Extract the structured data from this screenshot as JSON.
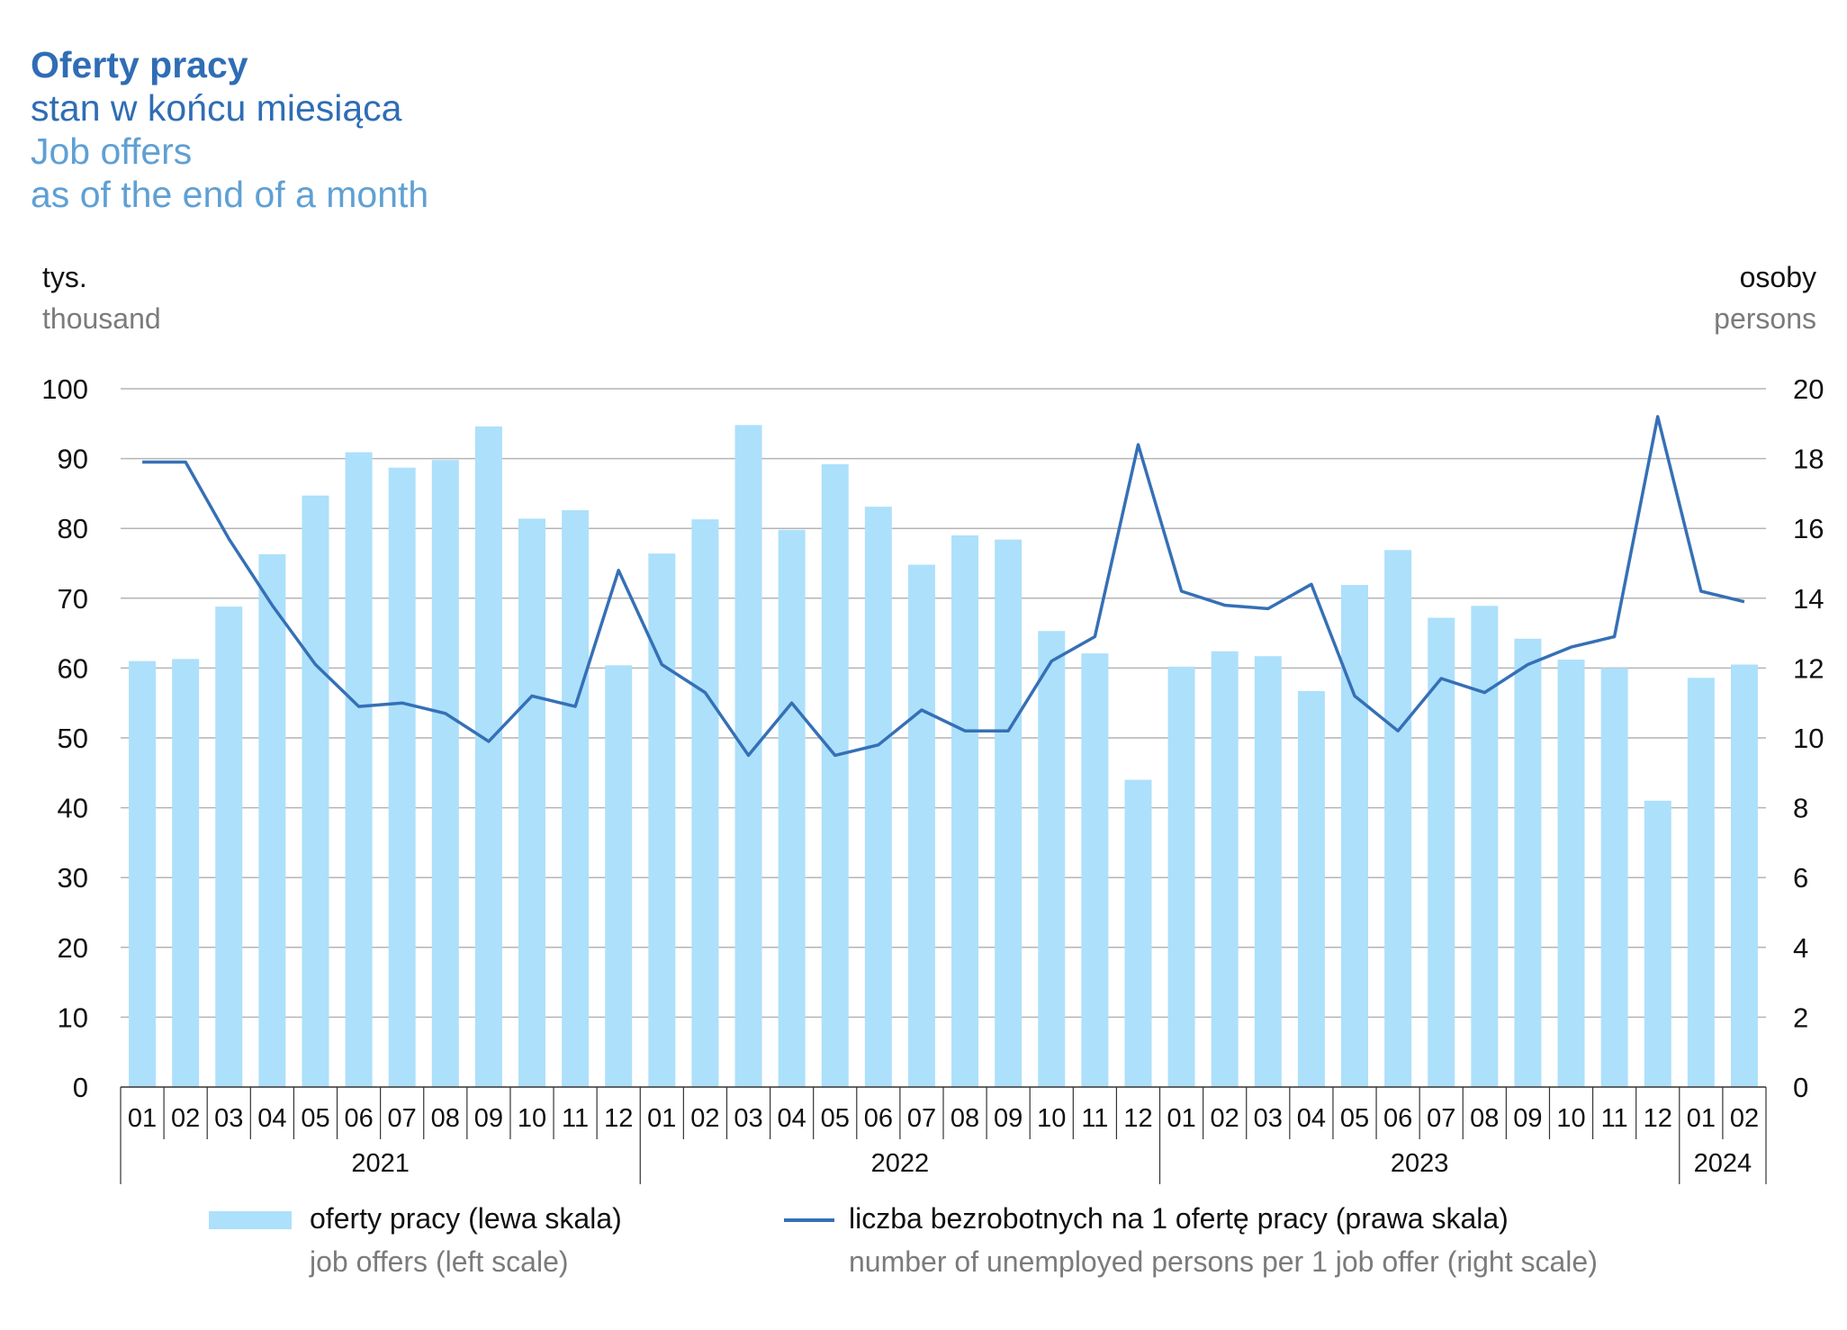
{
  "title": {
    "pl": "Oferty pracy",
    "pl_sub": "stan w końcu miesiąca",
    "en": "Job offers",
    "en_sub": "as of the end of a month"
  },
  "axis_units": {
    "left_pl": "tys.",
    "left_en": "thousand",
    "right_pl": "osoby",
    "right_en": "persons"
  },
  "legend": {
    "bars_pl": "oferty pracy (lewa skala)",
    "bars_en": "job offers (left scale)",
    "line_pl": "liczba bezrobotnych na 1 ofertę pracy (prawa skala)",
    "line_en": "number of unemployed persons per 1 job offer (right scale)"
  },
  "colors": {
    "bars": "#ade0fb",
    "line": "#3570b6",
    "title": "#2f6db5",
    "subtitle_en": "#5fa0d4",
    "grid": "#b4b4b4"
  },
  "chart_data": {
    "type": "bar",
    "categories": [
      "01",
      "02",
      "03",
      "04",
      "05",
      "06",
      "07",
      "08",
      "09",
      "10",
      "11",
      "12",
      "01",
      "02",
      "03",
      "04",
      "05",
      "06",
      "07",
      "08",
      "09",
      "10",
      "11",
      "12",
      "01",
      "02",
      "03",
      "04",
      "05",
      "06",
      "07",
      "08",
      "09",
      "10",
      "11",
      "12",
      "01",
      "02"
    ],
    "year_groups": [
      {
        "label": "2021",
        "count": 12
      },
      {
        "label": "2022",
        "count": 12
      },
      {
        "label": "2023",
        "count": 12
      },
      {
        "label": "2024",
        "count": 2
      }
    ],
    "series": [
      {
        "name": "oferty pracy (lewa skala)",
        "type": "bar",
        "axis": "left",
        "values": [
          61.0,
          61.3,
          68.8,
          76.3,
          84.7,
          90.9,
          88.7,
          89.8,
          94.6,
          81.4,
          82.6,
          60.4,
          76.4,
          81.3,
          94.8,
          79.8,
          89.2,
          83.1,
          74.8,
          79.0,
          78.4,
          65.3,
          62.1,
          44.0,
          60.2,
          62.4,
          61.7,
          56.7,
          71.9,
          76.9,
          67.2,
          68.9,
          64.2,
          61.2,
          60.0,
          41.0,
          58.6,
          60.5
        ]
      },
      {
        "name": "liczba bezrobotnych na 1 ofertę pracy (prawa skala)",
        "type": "line",
        "axis": "right",
        "values": [
          17.9,
          17.9,
          15.7,
          13.8,
          12.1,
          10.9,
          11.0,
          10.7,
          9.9,
          11.2,
          10.9,
          14.8,
          12.1,
          11.3,
          9.5,
          11.0,
          9.5,
          9.8,
          10.8,
          10.2,
          10.2,
          12.2,
          12.9,
          18.4,
          14.2,
          13.8,
          13.7,
          14.4,
          11.2,
          10.2,
          11.7,
          11.3,
          12.1,
          12.6,
          12.9,
          19.2,
          14.2,
          13.9
        ]
      }
    ],
    "yleft_ticks": [
      "0",
      "10",
      "20",
      "30",
      "40",
      "50",
      "60",
      "70",
      "80",
      "90",
      "100"
    ],
    "yright_ticks": [
      "0",
      "2",
      "4",
      "6",
      "8",
      "10",
      "12",
      "14",
      "16",
      "18",
      "20"
    ],
    "ylim_left": [
      0,
      100
    ],
    "ylim_right": [
      0,
      20
    ],
    "grid": true,
    "legend_position": "bottom"
  }
}
